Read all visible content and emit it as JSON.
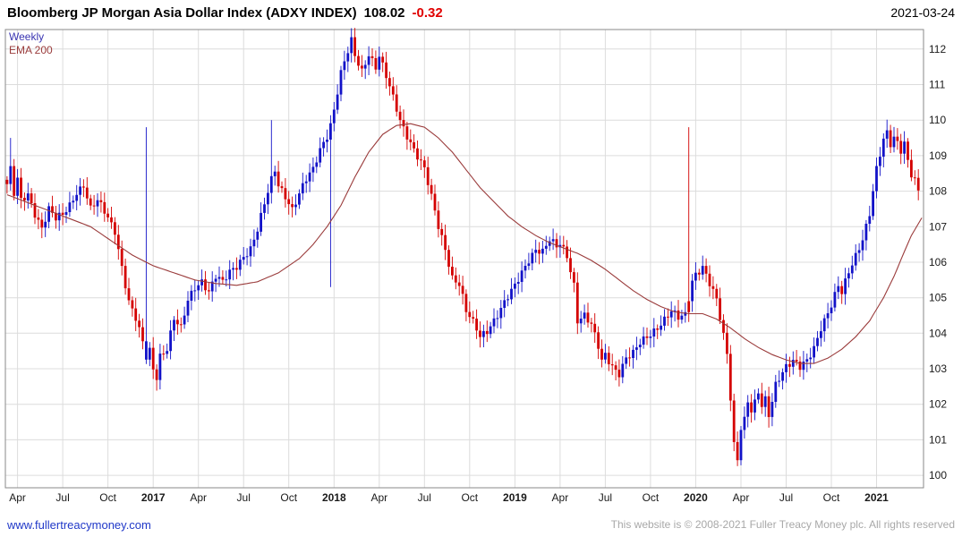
{
  "header": {
    "title": "Bloomberg JP Morgan Asia Dollar Index (ADXY INDEX)",
    "last_price": "108.02",
    "change": "-0.32",
    "date": "2021-03-24"
  },
  "legend": {
    "series": "Weekly",
    "ema": "EMA 200"
  },
  "footer": {
    "site": "www.fullertreacymoney.com",
    "copyright": "This website is © 2008-2021 Fuller Treacy Money plc. All rights reserved"
  },
  "chart_data": {
    "type": "candlestick",
    "title": "Bloomberg JP Morgan Asia Dollar Index (ADXY INDEX)",
    "timeframe": "Weekly",
    "overlay": "EMA 200",
    "last_close": 108.02,
    "change": -0.32,
    "as_of": "2021-03-24",
    "ylim": [
      99.65,
      112.55
    ],
    "yticks": [
      100,
      101,
      102,
      103,
      104,
      105,
      106,
      107,
      108,
      109,
      110,
      111,
      112
    ],
    "weeks_total": 264,
    "xticks": [
      {
        "week": 3,
        "label": "Apr",
        "bold": false
      },
      {
        "week": 16,
        "label": "Jul",
        "bold": false
      },
      {
        "week": 29,
        "label": "Oct",
        "bold": false
      },
      {
        "week": 42,
        "label": "2017",
        "bold": true
      },
      {
        "week": 55,
        "label": "Apr",
        "bold": false
      },
      {
        "week": 68,
        "label": "Jul",
        "bold": false
      },
      {
        "week": 81,
        "label": "Oct",
        "bold": false
      },
      {
        "week": 94,
        "label": "2018",
        "bold": true
      },
      {
        "week": 107,
        "label": "Apr",
        "bold": false
      },
      {
        "week": 120,
        "label": "Jul",
        "bold": false
      },
      {
        "week": 133,
        "label": "Oct",
        "bold": false
      },
      {
        "week": 146,
        "label": "2019",
        "bold": true
      },
      {
        "week": 159,
        "label": "Apr",
        "bold": false
      },
      {
        "week": 172,
        "label": "Jul",
        "bold": false
      },
      {
        "week": 185,
        "label": "Oct",
        "bold": false
      },
      {
        "week": 198,
        "label": "2020",
        "bold": true
      },
      {
        "week": 211,
        "label": "Apr",
        "bold": false
      },
      {
        "week": 224,
        "label": "Jul",
        "bold": false
      },
      {
        "week": 237,
        "label": "Oct",
        "bold": false
      },
      {
        "week": 250,
        "label": "2021",
        "bold": true
      }
    ],
    "colors": {
      "up": "#1212c8",
      "down": "#d40000",
      "ema": "#9a3b3b",
      "grid": "#dcdcdc",
      "axis": "#8a8a8a",
      "tick_text": "#1a1a1a"
    },
    "close_anchors": [
      [
        0,
        108.2
      ],
      [
        1,
        108.6
      ],
      [
        2,
        107.9
      ],
      [
        3,
        108.3
      ],
      [
        4,
        107.7
      ],
      [
        6,
        107.9
      ],
      [
        8,
        107.4
      ],
      [
        10,
        107.0
      ],
      [
        12,
        107.5
      ],
      [
        14,
        107.2
      ],
      [
        16,
        107.3
      ],
      [
        18,
        107.6
      ],
      [
        20,
        108.0
      ],
      [
        22,
        108.2
      ],
      [
        24,
        107.5
      ],
      [
        26,
        107.7
      ],
      [
        28,
        107.4
      ],
      [
        31,
        106.9
      ],
      [
        33,
        105.9
      ],
      [
        35,
        104.9
      ],
      [
        37,
        104.4
      ],
      [
        39,
        103.7
      ],
      [
        40,
        103.3
      ],
      [
        41,
        103.5
      ],
      [
        42,
        103.0
      ],
      [
        43,
        102.8
      ],
      [
        44,
        103.4
      ],
      [
        46,
        103.6
      ],
      [
        48,
        104.4
      ],
      [
        50,
        104.1
      ],
      [
        52,
        104.9
      ],
      [
        54,
        105.3
      ],
      [
        56,
        105.5
      ],
      [
        58,
        105.2
      ],
      [
        60,
        105.6
      ],
      [
        62,
        105.4
      ],
      [
        64,
        105.7
      ],
      [
        66,
        105.9
      ],
      [
        68,
        106.2
      ],
      [
        70,
        106.4
      ],
      [
        72,
        106.9
      ],
      [
        74,
        107.6
      ],
      [
        76,
        108.3
      ],
      [
        77,
        108.6
      ],
      [
        78,
        108.2
      ],
      [
        80,
        107.9
      ],
      [
        82,
        107.5
      ],
      [
        84,
        107.9
      ],
      [
        86,
        108.3
      ],
      [
        88,
        108.6
      ],
      [
        90,
        109.2
      ],
      [
        92,
        109.6
      ],
      [
        93,
        109.9
      ],
      [
        94,
        110.3
      ],
      [
        96,
        111.3
      ],
      [
        98,
        111.9
      ],
      [
        99,
        112.2
      ],
      [
        100,
        111.8
      ],
      [
        102,
        111.4
      ],
      [
        104,
        111.9
      ],
      [
        106,
        111.5
      ],
      [
        107,
        111.8
      ],
      [
        109,
        111.2
      ],
      [
        111,
        110.6
      ],
      [
        113,
        110.0
      ],
      [
        115,
        109.6
      ],
      [
        117,
        109.2
      ],
      [
        119,
        108.8
      ],
      [
        120,
        108.6
      ],
      [
        122,
        107.8
      ],
      [
        124,
        107.0
      ],
      [
        126,
        106.4
      ],
      [
        128,
        105.6
      ],
      [
        130,
        105.4
      ],
      [
        132,
        104.6
      ],
      [
        135,
        104.1
      ],
      [
        136,
        103.9
      ],
      [
        138,
        104.1
      ],
      [
        140,
        104.4
      ],
      [
        142,
        104.7
      ],
      [
        144,
        105.0
      ],
      [
        146,
        105.3
      ],
      [
        148,
        105.7
      ],
      [
        150,
        106.1
      ],
      [
        152,
        106.4
      ],
      [
        154,
        106.3
      ],
      [
        156,
        106.6
      ],
      [
        158,
        106.4
      ],
      [
        159,
        106.5
      ],
      [
        161,
        106.2
      ],
      [
        163,
        105.4
      ],
      [
        164,
        104.4
      ],
      [
        166,
        104.5
      ],
      [
        168,
        104.2
      ],
      [
        170,
        103.6
      ],
      [
        171,
        103.2
      ],
      [
        172,
        103.4
      ],
      [
        174,
        103.1
      ],
      [
        176,
        102.9
      ],
      [
        178,
        103.3
      ],
      [
        180,
        103.4
      ],
      [
        182,
        103.7
      ],
      [
        184,
        103.9
      ],
      [
        187,
        104.2
      ],
      [
        189,
        104.4
      ],
      [
        191,
        104.6
      ],
      [
        193,
        104.4
      ],
      [
        195,
        104.5
      ],
      [
        196,
        105.0
      ],
      [
        197,
        105.5
      ],
      [
        198,
        105.7
      ],
      [
        200,
        105.9
      ],
      [
        202,
        105.4
      ],
      [
        204,
        104.9
      ],
      [
        206,
        103.9
      ],
      [
        207,
        103.4
      ],
      [
        208,
        102.2
      ],
      [
        209,
        100.9
      ],
      [
        210,
        100.5
      ],
      [
        211,
        101.4
      ],
      [
        212,
        101.6
      ],
      [
        213,
        102.1
      ],
      [
        214,
        101.8
      ],
      [
        215,
        102.0
      ],
      [
        216,
        102.3
      ],
      [
        217,
        101.9
      ],
      [
        218,
        102.1
      ],
      [
        219,
        101.7
      ],
      [
        220,
        102.1
      ],
      [
        221,
        102.6
      ],
      [
        222,
        102.8
      ],
      [
        224,
        103.1
      ],
      [
        226,
        103.2
      ],
      [
        228,
        103.0
      ],
      [
        230,
        103.2
      ],
      [
        232,
        103.6
      ],
      [
        234,
        104.2
      ],
      [
        236,
        104.6
      ],
      [
        237,
        104.8
      ],
      [
        239,
        105.3
      ],
      [
        240,
        105.1
      ],
      [
        242,
        105.7
      ],
      [
        244,
        106.2
      ],
      [
        246,
        106.7
      ],
      [
        248,
        107.4
      ],
      [
        249,
        108.0
      ],
      [
        250,
        108.6
      ],
      [
        251,
        109.0
      ],
      [
        252,
        109.4
      ],
      [
        253,
        109.6
      ],
      [
        254,
        109.3
      ],
      [
        255,
        109.5
      ],
      [
        256,
        109.4
      ],
      [
        257,
        109.2
      ],
      [
        258,
        109.4
      ],
      [
        259,
        108.9
      ],
      [
        260,
        108.5
      ],
      [
        261,
        108.3
      ],
      [
        262,
        108.02
      ]
    ],
    "ema_anchors": [
      [
        0,
        107.9
      ],
      [
        8,
        107.6
      ],
      [
        16,
        107.3
      ],
      [
        24,
        107.0
      ],
      [
        30,
        106.6
      ],
      [
        36,
        106.2
      ],
      [
        42,
        105.9
      ],
      [
        48,
        105.7
      ],
      [
        54,
        105.5
      ],
      [
        60,
        105.4
      ],
      [
        66,
        105.35
      ],
      [
        72,
        105.45
      ],
      [
        78,
        105.7
      ],
      [
        84,
        106.1
      ],
      [
        88,
        106.5
      ],
      [
        92,
        107.0
      ],
      [
        96,
        107.6
      ],
      [
        100,
        108.4
      ],
      [
        104,
        109.1
      ],
      [
        108,
        109.6
      ],
      [
        112,
        109.85
      ],
      [
        116,
        109.9
      ],
      [
        120,
        109.8
      ],
      [
        124,
        109.5
      ],
      [
        128,
        109.1
      ],
      [
        132,
        108.6
      ],
      [
        136,
        108.1
      ],
      [
        140,
        107.7
      ],
      [
        144,
        107.3
      ],
      [
        148,
        107.0
      ],
      [
        152,
        106.75
      ],
      [
        156,
        106.55
      ],
      [
        160,
        106.4
      ],
      [
        164,
        106.25
      ],
      [
        168,
        106.05
      ],
      [
        172,
        105.8
      ],
      [
        176,
        105.5
      ],
      [
        180,
        105.2
      ],
      [
        184,
        104.95
      ],
      [
        188,
        104.75
      ],
      [
        192,
        104.6
      ],
      [
        196,
        104.55
      ],
      [
        200,
        104.55
      ],
      [
        204,
        104.4
      ],
      [
        208,
        104.15
      ],
      [
        212,
        103.85
      ],
      [
        216,
        103.6
      ],
      [
        220,
        103.4
      ],
      [
        224,
        103.25
      ],
      [
        228,
        103.15
      ],
      [
        232,
        103.15
      ],
      [
        236,
        103.3
      ],
      [
        240,
        103.55
      ],
      [
        244,
        103.9
      ],
      [
        248,
        104.35
      ],
      [
        252,
        105.0
      ],
      [
        255,
        105.6
      ],
      [
        258,
        106.3
      ],
      [
        260,
        106.75
      ],
      [
        263,
        107.25
      ]
    ],
    "spikes": [
      {
        "week": 1,
        "high": 109.5,
        "dir": "up"
      },
      {
        "week": 40,
        "high": 109.8,
        "dir": "up"
      },
      {
        "week": 76,
        "high": 110.0,
        "dir": "up"
      },
      {
        "week": 93,
        "low": 105.3,
        "dir": "up"
      },
      {
        "week": 196,
        "high": 109.8,
        "dir": "down"
      }
    ],
    "layout_hints": {
      "grid": "on",
      "legend_position": "top-left",
      "y_axis_side": "right"
    }
  }
}
